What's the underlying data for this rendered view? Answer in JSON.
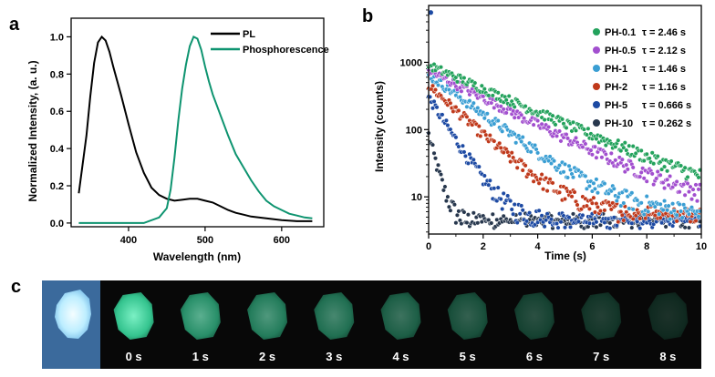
{
  "panels": {
    "a": "a",
    "b": "b",
    "c": "c"
  },
  "chart_data": [
    {
      "type": "line",
      "panel": "a",
      "xlabel": "Wavelength (nm)",
      "ylabel": "Normalized Intensity, (a. u.)",
      "xlim": [
        325,
        655
      ],
      "ylim": [
        -0.02,
        1.1
      ],
      "xticks": [
        400,
        500,
        600
      ],
      "yticks": [
        0.0,
        0.2,
        0.4,
        0.6,
        0.8,
        1.0
      ],
      "ytick_labels": [
        "0.0",
        "0.2",
        "0.4",
        "0.6",
        "0.8",
        "1.0"
      ],
      "series": [
        {
          "name": "PL",
          "color": "#000000",
          "x": [
            335,
            345,
            350,
            355,
            360,
            365,
            370,
            375,
            380,
            390,
            400,
            410,
            420,
            430,
            440,
            450,
            460,
            470,
            480,
            490,
            500,
            510,
            520,
            530,
            540,
            550,
            560,
            580,
            600,
            620,
            640
          ],
          "y": [
            0.16,
            0.47,
            0.68,
            0.86,
            0.97,
            1.0,
            0.98,
            0.92,
            0.84,
            0.69,
            0.53,
            0.38,
            0.27,
            0.19,
            0.15,
            0.13,
            0.12,
            0.125,
            0.13,
            0.13,
            0.12,
            0.11,
            0.09,
            0.07,
            0.055,
            0.045,
            0.035,
            0.025,
            0.015,
            0.01,
            0.01
          ]
        },
        {
          "name": "Phosphorescence",
          "color": "#0e9470",
          "x": [
            335,
            380,
            420,
            440,
            450,
            455,
            460,
            465,
            470,
            475,
            480,
            485,
            490,
            495,
            500,
            505,
            510,
            520,
            530,
            540,
            550,
            560,
            570,
            580,
            590,
            600,
            610,
            620,
            630,
            640
          ],
          "y": [
            0.0,
            0.0,
            0.0,
            0.03,
            0.08,
            0.18,
            0.35,
            0.55,
            0.72,
            0.85,
            0.95,
            1.0,
            0.99,
            0.93,
            0.84,
            0.76,
            0.69,
            0.58,
            0.47,
            0.37,
            0.3,
            0.23,
            0.17,
            0.12,
            0.09,
            0.07,
            0.05,
            0.04,
            0.03,
            0.025
          ]
        }
      ]
    },
    {
      "type": "scatter",
      "panel": "b",
      "xlabel": "Time (s)",
      "ylabel": "Intensity (counts)",
      "xlim": [
        0,
        10
      ],
      "ylim_log": [
        2.8,
        7000
      ],
      "yscale": "log",
      "xticks": [
        0,
        2,
        4,
        6,
        8,
        10
      ],
      "yticks": [
        10,
        100,
        1000
      ],
      "series": [
        {
          "name": "PH-0.1",
          "tau_label": "τ = 2.46 s",
          "tau": 2.46,
          "amplitude": 900,
          "background": 5,
          "color": "#23a25c"
        },
        {
          "name": "PH-0.5",
          "tau_label": "τ = 2.12 s",
          "tau": 2.12,
          "amplitude": 750,
          "background": 5,
          "color": "#a24fcf"
        },
        {
          "name": "PH-1",
          "tau_label": "τ = 1.46 s",
          "tau": 1.46,
          "amplitude": 650,
          "background": 5,
          "color": "#3a9ed3"
        },
        {
          "name": "PH-2",
          "tau_label": "τ = 1.16 s",
          "tau": 1.16,
          "amplitude": 450,
          "background": 5,
          "color": "#c0391b"
        },
        {
          "name": "PH-5",
          "tau_label": "τ = 0.666 s",
          "tau": 0.666,
          "amplitude": 300,
          "background": 4,
          "color": "#1d4aa3"
        },
        {
          "name": "PH-10",
          "tau_label": "τ = 0.262 s",
          "tau": 0.262,
          "amplitude": 80,
          "background": 4,
          "color": "#27374d"
        }
      ]
    }
  ],
  "photos": {
    "colors": {
      "uv_bg": "#3b6a9c",
      "uv_sample": "#d8f6ff",
      "dark_bg": "#080808",
      "glow": "#41d9a2"
    },
    "frames": [
      {
        "label": "",
        "brightness": 1.0
      },
      {
        "label": "0 s",
        "brightness": 1.0
      },
      {
        "label": "1 s",
        "brightness": 0.72
      },
      {
        "label": "2 s",
        "brightness": 0.62
      },
      {
        "label": "3 s",
        "brightness": 0.55
      },
      {
        "label": "4 s",
        "brightness": 0.46
      },
      {
        "label": "5 s",
        "brightness": 0.38
      },
      {
        "label": "6 s",
        "brightness": 0.31
      },
      {
        "label": "7 s",
        "brightness": 0.24
      },
      {
        "label": "8 s",
        "brightness": 0.18
      }
    ]
  }
}
